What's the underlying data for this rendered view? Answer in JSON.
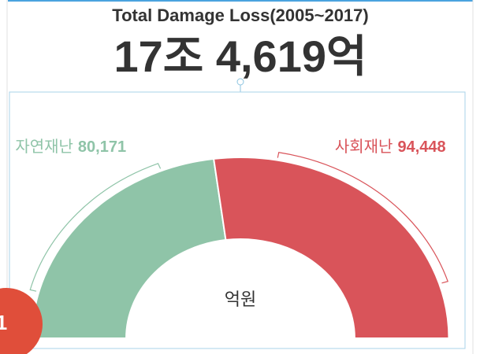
{
  "chart_data": {
    "type": "half-donut",
    "title": "Total Damage Loss(2005~2017)",
    "subtitle": "17조 4,619억",
    "categories": [
      "자연재난",
      "사회재난"
    ],
    "values": [
      80171,
      94448
    ],
    "value_labels": [
      "80,171",
      "94,448"
    ],
    "colors": [
      "#8fc4a8",
      "#d9545a"
    ],
    "center_label": "억원"
  },
  "badge": "1"
}
